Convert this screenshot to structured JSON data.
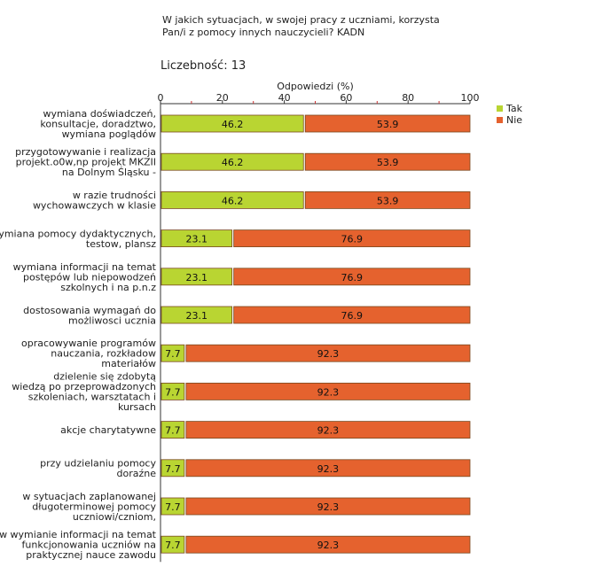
{
  "header": {
    "title_line1": "W jakich sytuacjach, w swojej pracy z uczniami, korzysta",
    "title_line2": "Pan/i z pomocy innych nauczycieli? KADN",
    "count_label": "Liczebność: 13"
  },
  "chart_data": {
    "type": "bar",
    "orientation": "horizontal",
    "stacked": true,
    "xlabel": "Odpowiedzi (%)",
    "xlim": [
      0,
      100
    ],
    "xticks": [
      0,
      20,
      40,
      60,
      80,
      100
    ],
    "legend_position": "top-right",
    "categories": [
      [
        "wymiana doświadczeń,",
        "konsultacje, doradztwo,",
        "wymiana poglądów"
      ],
      [
        "przygotowywanie i realizacja",
        "projekt.o0w,np projekt MKZII",
        "na Dolnym Śląsku -"
      ],
      [
        "w razie trudności",
        "wychowawczych w klasie"
      ],
      [
        "wymiana pomocy dydaktycznych,",
        "testow, plansz"
      ],
      [
        "wymiana informacji na temat",
        "postępów lub niepowodzeń",
        "szkolnych i na p.n.z"
      ],
      [
        "dostosowania wymagań do",
        "możliwosci ucznia"
      ],
      [
        "opracowywanie programów",
        "nauczania, rozkładow",
        "materiałów"
      ],
      [
        "dzielenie się zdobytą",
        "wiedzą po przeprowadzonych",
        "szkoleniach, warsztatach i",
        "kursach"
      ],
      [
        "akcje charytatywne"
      ],
      [
        "przy udzielaniu pomocy",
        "doraźne"
      ],
      [
        "w sytuacjach zaplanowanej",
        "długoterminowej pomocy",
        "uczniowi/czniom,"
      ],
      [
        "w wymianie informacji na temat",
        "funkcjonowania uczniów na",
        "praktycznej nauce zawodu"
      ]
    ],
    "series": [
      {
        "name": "Tak",
        "color": "#b9d532",
        "values": [
          46.2,
          46.2,
          46.2,
          23.1,
          23.1,
          23.1,
          7.7,
          7.7,
          7.7,
          7.7,
          7.7,
          7.7
        ]
      },
      {
        "name": "Nie",
        "color": "#e5622e",
        "values": [
          53.9,
          53.9,
          53.9,
          76.9,
          76.9,
          76.9,
          92.3,
          92.3,
          92.3,
          92.3,
          92.3,
          92.3
        ]
      }
    ]
  }
}
